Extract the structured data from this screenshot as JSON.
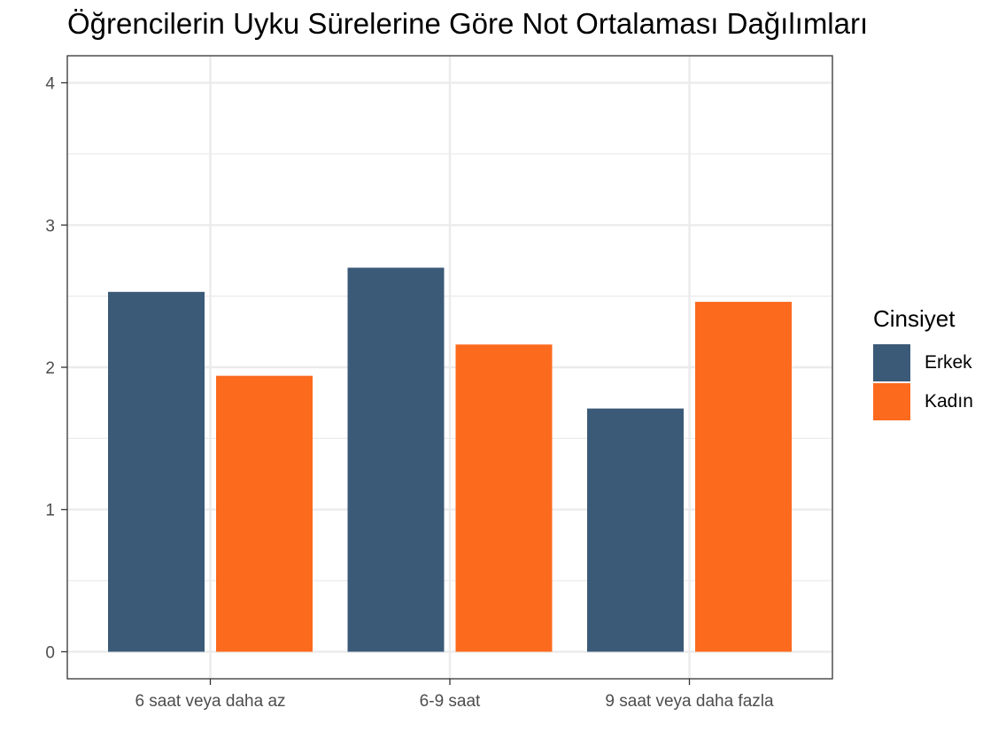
{
  "chart_data": {
    "type": "bar",
    "title": "Öğrencilerin Uyku Sürelerine Göre Not Ortalaması Dağılımları",
    "xlabel": "",
    "ylabel": "",
    "categories": [
      "6 saat veya daha az",
      "6-9 saat",
      "9 saat veya daha fazla"
    ],
    "series": [
      {
        "name": "Erkek",
        "color": "#3B5A78",
        "values": [
          2.53,
          2.7,
          1.71
        ]
      },
      {
        "name": "Kadın",
        "color": "#FC6A1E",
        "values": [
          1.94,
          2.16,
          2.46
        ]
      }
    ],
    "ylim": [
      -0.19,
      4.19
    ],
    "yticks": [
      "0",
      "1",
      "2",
      "3",
      "4"
    ],
    "grid": true,
    "legend": {
      "title": "Cinsiyet",
      "position": "right"
    }
  }
}
